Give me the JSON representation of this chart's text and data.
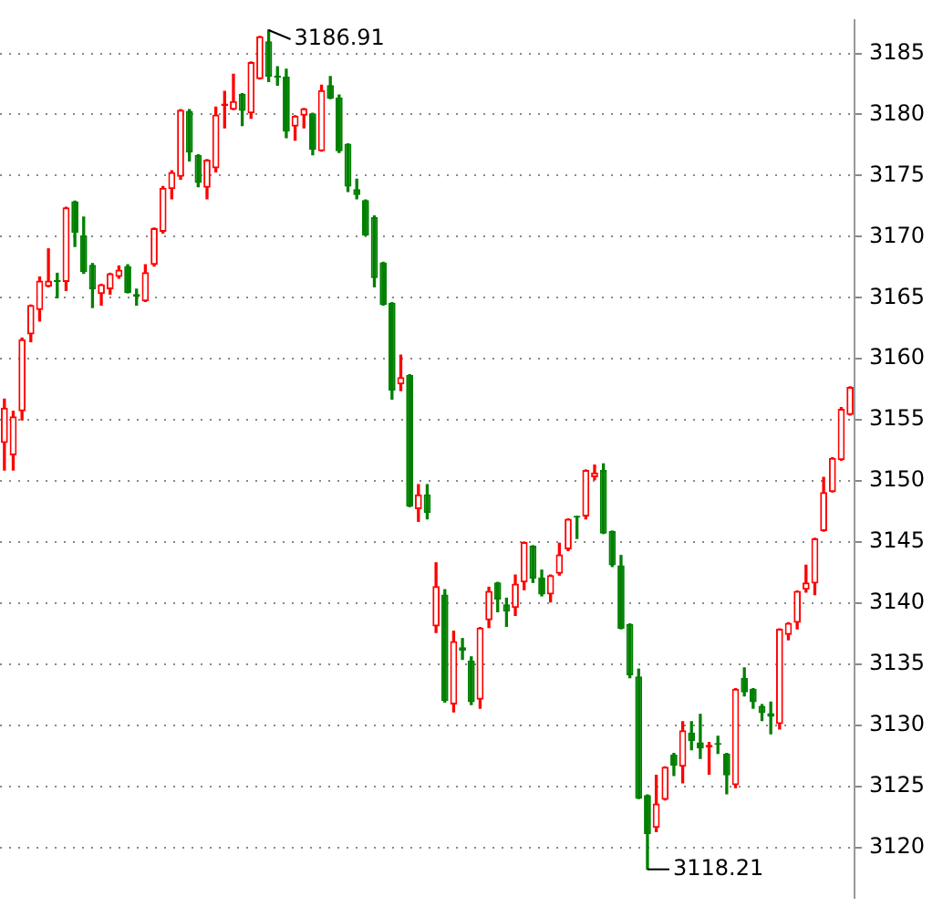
{
  "chart_data": {
    "type": "candlestick",
    "categories": [
      null,
      null,
      null,
      null,
      null,
      null,
      null,
      null,
      null,
      null,
      null,
      null,
      null,
      null,
      null,
      null,
      null,
      null,
      null,
      null,
      null,
      null,
      null,
      null,
      null,
      null,
      null,
      null,
      null,
      null,
      null,
      null,
      null,
      null,
      null,
      null,
      null,
      null,
      null,
      null,
      null,
      null,
      null,
      null,
      null,
      null,
      null,
      null,
      null,
      null,
      null,
      null,
      null,
      null,
      null,
      null,
      null,
      null,
      null,
      null,
      null,
      null,
      null,
      null,
      null,
      null,
      null,
      null,
      null,
      null,
      null,
      null,
      null,
      null,
      null,
      null,
      null,
      null,
      null,
      null,
      null,
      null,
      null,
      null,
      null,
      null,
      null,
      null,
      null,
      null,
      null,
      null,
      null,
      null,
      null,
      null,
      null
    ],
    "ohlc": [
      [
        3153.1,
        3156.7,
        3150.9,
        3156.0
      ],
      [
        3152.1,
        3155.7,
        3150.9,
        3155.3
      ],
      [
        3155.7,
        3161.7,
        3155.0,
        3161.6
      ],
      [
        3162.0,
        3164.4,
        3161.4,
        3164.4
      ],
      [
        3164.0,
        3166.7,
        3163.1,
        3166.4
      ],
      [
        3165.9,
        3169.0,
        3165.9,
        3166.4
      ],
      [
        3166.4,
        3167.0,
        3165.0,
        3166.3
      ],
      [
        3166.3,
        3172.4,
        3165.6,
        3172.4
      ],
      [
        3172.9,
        3172.9,
        3169.2,
        3170.3
      ],
      [
        3170.1,
        3171.6,
        3167.0,
        3167.1
      ],
      [
        3167.7,
        3167.8,
        3164.2,
        3165.7
      ],
      [
        3165.3,
        3166.1,
        3164.4,
        3166.1
      ],
      [
        3165.7,
        3167.0,
        3165.3,
        3167.0
      ],
      [
        3166.7,
        3167.6,
        3166.6,
        3167.3
      ],
      [
        3167.6,
        3167.7,
        3165.4,
        3165.4
      ],
      [
        3165.3,
        3165.7,
        3164.4,
        3165.1
      ],
      [
        3164.7,
        3167.7,
        3164.7,
        3167.1
      ],
      [
        3167.7,
        3170.7,
        3167.6,
        3170.7
      ],
      [
        3170.4,
        3174.1,
        3170.3,
        3174.0
      ],
      [
        3173.9,
        3175.4,
        3173.1,
        3175.3
      ],
      [
        3174.9,
        3180.4,
        3174.7,
        3180.4
      ],
      [
        3180.3,
        3180.4,
        3176.2,
        3176.9
      ],
      [
        3176.7,
        3176.7,
        3174.1,
        3174.4
      ],
      [
        3174.0,
        3176.3,
        3173.1,
        3176.3
      ],
      [
        3175.6,
        3180.6,
        3175.3,
        3180.0
      ],
      [
        3180.7,
        3181.9,
        3178.9,
        3180.9
      ],
      [
        3180.4,
        3183.3,
        3180.4,
        3181.1
      ],
      [
        3181.7,
        3181.7,
        3179.1,
        3180.3
      ],
      [
        3180.1,
        3184.3,
        3179.7,
        3184.3
      ],
      [
        3182.9,
        3186.4,
        3182.9,
        3186.4
      ],
      [
        3186.0,
        3186.91,
        3182.7,
        3183.1
      ],
      [
        3183.2,
        3183.9,
        3182.4,
        3183.0
      ],
      [
        3183.1,
        3183.7,
        3178.1,
        3178.6
      ],
      [
        3179.0,
        3179.9,
        3177.9,
        3179.9
      ],
      [
        3179.9,
        3180.5,
        3178.9,
        3180.5
      ],
      [
        3180.1,
        3180.1,
        3176.7,
        3177.1
      ],
      [
        3177.0,
        3182.4,
        3177.0,
        3182.0
      ],
      [
        3182.4,
        3183.1,
        3181.3,
        3181.3
      ],
      [
        3181.4,
        3181.6,
        3176.9,
        3177.0
      ],
      [
        3177.6,
        3177.6,
        3173.7,
        3174.1
      ],
      [
        3173.9,
        3174.7,
        3173.1,
        3173.4
      ],
      [
        3173.0,
        3173.0,
        3170.1,
        3170.1
      ],
      [
        3171.6,
        3171.7,
        3165.9,
        3166.6
      ],
      [
        3167.9,
        3167.9,
        3164.4,
        3164.4
      ],
      [
        3164.6,
        3164.6,
        3156.7,
        3157.4
      ],
      [
        3157.9,
        3160.3,
        3157.4,
        3158.5
      ],
      [
        3158.7,
        3158.7,
        3147.9,
        3147.9
      ],
      [
        3147.7,
        3149.7,
        3146.7,
        3148.9
      ],
      [
        3148.9,
        3149.7,
        3146.9,
        3147.4
      ],
      [
        3138.1,
        3143.3,
        3137.6,
        3141.4
      ],
      [
        3140.7,
        3141.1,
        3131.9,
        3132.0
      ],
      [
        3131.7,
        3137.7,
        3131.1,
        3136.9
      ],
      [
        3136.4,
        3137.1,
        3135.4,
        3136.1
      ],
      [
        3135.3,
        3135.6,
        3131.7,
        3131.9
      ],
      [
        3132.1,
        3138.0,
        3131.4,
        3138.0
      ],
      [
        3138.6,
        3141.3,
        3138.0,
        3141.0
      ],
      [
        3141.7,
        3141.7,
        3139.3,
        3140.3
      ],
      [
        3139.9,
        3140.4,
        3138.1,
        3139.3
      ],
      [
        3139.6,
        3142.3,
        3139.0,
        3141.6
      ],
      [
        3141.7,
        3145.0,
        3141.1,
        3145.0
      ],
      [
        3144.7,
        3144.7,
        3141.7,
        3142.0
      ],
      [
        3142.1,
        3142.7,
        3140.6,
        3140.7
      ],
      [
        3140.7,
        3142.3,
        3140.1,
        3142.3
      ],
      [
        3142.4,
        3144.9,
        3142.3,
        3144.0
      ],
      [
        3144.4,
        3146.9,
        3144.3,
        3146.9
      ],
      [
        3147.1,
        3147.1,
        3145.3,
        3147.0
      ],
      [
        3147.1,
        3150.9,
        3146.9,
        3150.9
      ],
      [
        3150.3,
        3151.3,
        3150.1,
        3150.7
      ],
      [
        3150.9,
        3151.4,
        3145.7,
        3145.7
      ],
      [
        3145.9,
        3145.9,
        3143.0,
        3143.1
      ],
      [
        3143.1,
        3143.9,
        3137.9,
        3137.9
      ],
      [
        3138.3,
        3138.3,
        3133.9,
        3134.1
      ],
      [
        3134.0,
        3134.6,
        3124.0,
        3124.0
      ],
      [
        3124.3,
        3124.3,
        3118.21,
        3121.1
      ],
      [
        3121.6,
        3125.9,
        3121.3,
        3123.6
      ],
      [
        3123.9,
        3126.6,
        3123.9,
        3126.6
      ],
      [
        3127.6,
        3127.7,
        3125.9,
        3126.7
      ],
      [
        3126.6,
        3130.3,
        3125.3,
        3129.6
      ],
      [
        3129.4,
        3130.3,
        3128.0,
        3128.7
      ],
      [
        3128.6,
        3130.9,
        3127.3,
        3128.1
      ],
      [
        3128.2,
        3128.6,
        3126.0,
        3128.4
      ],
      [
        3128.5,
        3129.1,
        3127.7,
        3128.4
      ],
      [
        3127.7,
        3127.7,
        3124.4,
        3125.9
      ],
      [
        3125.1,
        3133.0,
        3124.9,
        3133.0
      ],
      [
        3133.9,
        3134.7,
        3132.4,
        3132.7
      ],
      [
        3133.0,
        3133.0,
        3131.4,
        3131.9
      ],
      [
        3131.6,
        3131.7,
        3130.4,
        3131.0
      ],
      [
        3131.0,
        3131.9,
        3129.3,
        3130.7
      ],
      [
        3130.1,
        3137.9,
        3129.7,
        3137.9
      ],
      [
        3137.4,
        3138.4,
        3137.0,
        3138.4
      ],
      [
        3138.4,
        3141.0,
        3137.9,
        3141.0
      ],
      [
        3141.1,
        3143.1,
        3140.9,
        3141.7
      ],
      [
        3141.6,
        3145.3,
        3140.7,
        3145.3
      ],
      [
        3145.9,
        3150.3,
        3145.9,
        3149.1
      ],
      [
        3149.1,
        3151.9,
        3149.1,
        3151.9
      ],
      [
        3151.7,
        3156.0,
        3151.7,
        3155.9
      ],
      [
        3155.4,
        3157.7,
        3155.4,
        3157.7
      ]
    ],
    "colors": [
      "#ff0000",
      "#ff0000",
      "#ff0000",
      "#ff0000",
      "#ff0000",
      "#ff0000",
      "#008000",
      "#ff0000",
      "#008000",
      "#008000",
      "#008000",
      "#ff0000",
      "#ff0000",
      "#ff0000",
      "#008000",
      "#008000",
      "#ff0000",
      "#ff0000",
      "#ff0000",
      "#ff0000",
      "#ff0000",
      "#008000",
      "#008000",
      "#ff0000",
      "#ff0000",
      "#ff0000",
      "#ff0000",
      "#008000",
      "#ff0000",
      "#ff0000",
      "#008000",
      "#008000",
      "#008000",
      "#ff0000",
      "#ff0000",
      "#008000",
      "#ff0000",
      "#008000",
      "#008000",
      "#008000",
      "#008000",
      "#008000",
      "#008000",
      "#008000",
      "#008000",
      "#ff0000",
      "#008000",
      "#ff0000",
      "#008000",
      "#ff0000",
      "#008000",
      "#ff0000",
      "#008000",
      "#008000",
      "#ff0000",
      "#ff0000",
      "#008000",
      "#008000",
      "#ff0000",
      "#ff0000",
      "#008000",
      "#008000",
      "#ff0000",
      "#ff0000",
      "#ff0000",
      "#008000",
      "#ff0000",
      "#ff0000",
      "#008000",
      "#008000",
      "#008000",
      "#008000",
      "#008000",
      "#008000",
      "#ff0000",
      "#ff0000",
      "#008000",
      "#ff0000",
      "#008000",
      "#008000",
      "#ff0000",
      "#008000",
      "#008000",
      "#ff0000",
      "#008000",
      "#008000",
      "#008000",
      "#008000",
      "#ff0000",
      "#ff0000",
      "#ff0000",
      "#ff0000",
      "#ff0000",
      "#ff0000",
      "#ff0000",
      "#ff0000",
      "#ff0000"
    ],
    "ylim": [
      3115.9,
      3187.7
    ],
    "yticks": [
      3120,
      3125,
      3130,
      3135,
      3140,
      3145,
      3150,
      3155,
      3160,
      3165,
      3170,
      3175,
      3180,
      3185
    ],
    "grid": "y",
    "tick_labels": "y",
    "annotations": [
      "3186.91",
      "3118.21"
    ]
  }
}
